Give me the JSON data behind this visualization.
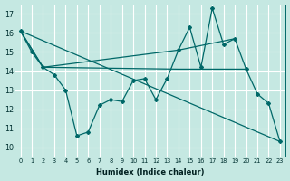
{
  "xlabel": "Humidex (Indice chaleur)",
  "bg_color": "#c5e8e2",
  "grid_color": "#ffffff",
  "line_color": "#006868",
  "xlim": [
    -0.5,
    23.5
  ],
  "ylim": [
    9.5,
    17.5
  ],
  "xticks": [
    0,
    1,
    2,
    3,
    4,
    5,
    6,
    7,
    8,
    9,
    10,
    11,
    12,
    13,
    14,
    15,
    16,
    17,
    18,
    19,
    20,
    21,
    22,
    23
  ],
  "yticks": [
    10,
    11,
    12,
    13,
    14,
    15,
    16,
    17
  ],
  "line1_x": [
    0,
    1,
    2,
    3,
    4,
    5,
    6,
    7,
    8,
    9,
    10,
    11,
    12,
    13,
    14,
    15,
    16,
    17,
    18,
    19,
    20,
    21,
    22,
    23
  ],
  "line1_y": [
    16.1,
    15.0,
    14.2,
    13.8,
    13.0,
    10.6,
    10.8,
    12.2,
    12.5,
    12.4,
    13.5,
    13.6,
    12.5,
    13.6,
    15.1,
    16.3,
    14.2,
    17.3,
    15.4,
    15.7,
    14.1,
    12.8,
    12.3,
    10.3
  ],
  "line2_x": [
    0,
    23
  ],
  "line2_y": [
    16.1,
    10.3
  ],
  "line3_x": [
    0,
    2,
    14,
    19
  ],
  "line3_y": [
    16.1,
    14.2,
    15.1,
    15.7
  ],
  "line4_x": [
    0,
    2,
    14,
    15,
    16,
    17,
    18,
    19,
    20
  ],
  "line4_y": [
    16.1,
    14.2,
    14.1,
    14.1,
    14.1,
    14.1,
    14.1,
    14.1,
    14.1
  ]
}
